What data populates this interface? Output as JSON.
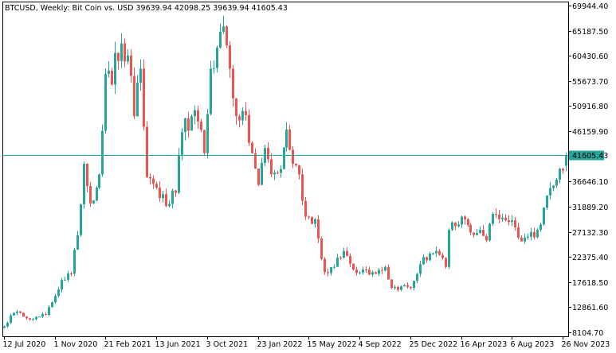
{
  "header": {
    "symbol": "BTCUSD",
    "timeframe": "Weekly",
    "description": "Bit Coin vs. USD",
    "ohlc": "39639.94 42098.25 39639.94 41605.43"
  },
  "colors": {
    "bull": "#26a69a",
    "bear": "#ef5350",
    "price_line": "#26a69a",
    "price_label_bg": "#26a69a",
    "price_label_text": "#ffffff",
    "frame": "#000000",
    "background": "#ffffff"
  },
  "chart_data": {
    "type": "candlestick",
    "title": "BTCUSD, Weekly:  Bit Coin vs. USD  39639.94 42098.25 39639.94 41605.43",
    "grid": false,
    "y_ticks": [
      "69944.40",
      "65187.50",
      "60430.60",
      "55673.70",
      "50916.80",
      "46159.90",
      "41605.43",
      "36646.10",
      "31889.20",
      "27132.30",
      "22375.40",
      "17618.50",
      "12861.60",
      "8104.70"
    ],
    "y_tick_values": [
      69944.4,
      65187.5,
      60430.6,
      55673.7,
      50916.8,
      46159.9,
      41605.43,
      36646.1,
      31889.2,
      27132.3,
      22375.4,
      17618.5,
      12861.6,
      8104.7
    ],
    "x_ticks": [
      "12 Jul 2020",
      "1 Nov 2020",
      "21 Feb 2021",
      "13 Jun 2021",
      "3 Oct 2021",
      "23 Jan 2022",
      "15 May 2022",
      "4 Sep 2022",
      "25 Dec 2022",
      "16 Apr 2023",
      "6 Aug 2023",
      "26 Nov 2023"
    ],
    "ylim": [
      8104.7,
      69944.4
    ],
    "current_price": 41605.43,
    "close_path": [
      [
        "2020-07-12",
        9200
      ],
      [
        "2020-07-26",
        11300
      ],
      [
        "2020-08-16",
        11800
      ],
      [
        "2020-09-13",
        10600
      ],
      [
        "2020-10-11",
        11400
      ],
      [
        "2020-10-25",
        13800
      ],
      [
        "2020-11-15",
        18000
      ],
      [
        "2020-12-06",
        19200
      ],
      [
        "2020-12-20",
        26500
      ],
      [
        "2021-01-03",
        40000
      ],
      [
        "2021-01-17",
        32500
      ],
      [
        "2021-02-07",
        38000
      ],
      [
        "2021-02-21",
        57000
      ],
      [
        "2021-03-07",
        55000
      ],
      [
        "2021-03-14",
        61000
      ],
      [
        "2021-04-11",
        60500
      ],
      [
        "2021-04-25",
        49000
      ],
      [
        "2021-05-09",
        58000
      ],
      [
        "2021-05-23",
        37500
      ],
      [
        "2021-06-13",
        35500
      ],
      [
        "2021-07-04",
        32000
      ],
      [
        "2021-07-25",
        34500
      ],
      [
        "2021-08-08",
        46000
      ],
      [
        "2021-08-29",
        49000
      ],
      [
        "2021-09-12",
        48000
      ],
      [
        "2021-09-26",
        42000
      ],
      [
        "2021-10-10",
        58000
      ],
      [
        "2021-10-24",
        62000
      ],
      [
        "2021-11-07",
        66000
      ],
      [
        "2021-11-21",
        58000
      ],
      [
        "2021-12-05",
        49000
      ],
      [
        "2021-12-19",
        50000
      ],
      [
        "2022-01-09",
        42000
      ],
      [
        "2022-01-23",
        36000
      ],
      [
        "2022-02-06",
        43000
      ],
      [
        "2022-02-20",
        38000
      ],
      [
        "2022-03-13",
        39000
      ],
      [
        "2022-03-27",
        46500
      ],
      [
        "2022-04-10",
        40000
      ],
      [
        "2022-04-24",
        38000
      ],
      [
        "2022-05-08",
        30000
      ],
      [
        "2022-05-29",
        29500
      ],
      [
        "2022-06-12",
        22000
      ],
      [
        "2022-06-19",
        19500
      ],
      [
        "2022-07-10",
        20500
      ],
      [
        "2022-07-31",
        23500
      ],
      [
        "2022-08-21",
        20000
      ],
      [
        "2022-09-11",
        20000
      ],
      [
        "2022-10-02",
        19500
      ],
      [
        "2022-10-30",
        20500
      ],
      [
        "2022-11-13",
        16500
      ],
      [
        "2022-12-04",
        16800
      ],
      [
        "2022-12-25",
        16500
      ],
      [
        "2023-01-15",
        21000
      ],
      [
        "2023-02-05",
        23000
      ],
      [
        "2023-02-19",
        23500
      ],
      [
        "2023-03-12",
        20500
      ],
      [
        "2023-03-19",
        27500
      ],
      [
        "2023-04-09",
        28500
      ],
      [
        "2023-04-16",
        30000
      ],
      [
        "2023-05-07",
        27000
      ],
      [
        "2023-05-28",
        27500
      ],
      [
        "2023-06-11",
        25500
      ],
      [
        "2023-06-25",
        30500
      ],
      [
        "2023-07-16",
        29800
      ],
      [
        "2023-08-06",
        29300
      ],
      [
        "2023-08-20",
        26000
      ],
      [
        "2023-09-10",
        26200
      ],
      [
        "2023-10-01",
        27500
      ],
      [
        "2023-10-22",
        34000
      ],
      [
        "2023-11-12",
        37000
      ],
      [
        "2023-12-03",
        41605.43
      ]
    ]
  }
}
